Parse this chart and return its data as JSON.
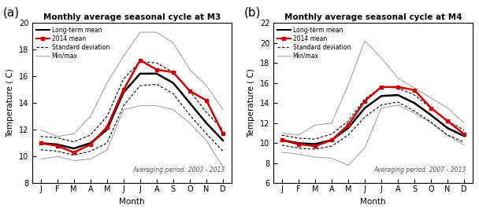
{
  "months": [
    "J",
    "F",
    "M",
    "A",
    "M",
    "J",
    "J",
    "A",
    "S",
    "O",
    "N",
    "D"
  ],
  "m3": {
    "title": "Monthly average seasonal cycle at M3",
    "ylabel": "Temperature ( C)",
    "xlabel": "Month",
    "ylim": [
      8,
      20
    ],
    "yticks": [
      8,
      10,
      12,
      14,
      16,
      18,
      20
    ],
    "averaging_text": "Averaging period: 2003 - 2013",
    "long_term_mean": [
      11.0,
      10.9,
      10.6,
      11.0,
      12.0,
      14.8,
      16.2,
      16.2,
      15.5,
      14.0,
      12.5,
      11.2
    ],
    "mean_2014": [
      11.0,
      10.8,
      10.3,
      10.9,
      12.2,
      15.0,
      17.2,
      16.5,
      16.3,
      14.9,
      14.2,
      11.7
    ],
    "std_upper": [
      11.5,
      11.4,
      11.1,
      11.6,
      13.0,
      15.8,
      17.1,
      17.0,
      16.3,
      14.9,
      13.3,
      12.0
    ],
    "std_lower": [
      10.5,
      10.4,
      10.1,
      10.4,
      11.0,
      13.8,
      15.3,
      15.4,
      14.7,
      13.1,
      11.7,
      10.4
    ],
    "max_line": [
      12.0,
      11.5,
      11.7,
      13.0,
      15.5,
      17.5,
      19.3,
      19.3,
      18.5,
      16.5,
      15.3,
      13.5
    ],
    "min_line": [
      9.8,
      10.0,
      9.7,
      9.8,
      10.5,
      13.5,
      13.8,
      13.8,
      13.5,
      12.5,
      11.2,
      9.2
    ]
  },
  "m4": {
    "title": "Monthly average seasonal cycle at M4",
    "ylabel": "Temperature ( C)",
    "xlabel": "Month",
    "ylim": [
      6,
      22
    ],
    "yticks": [
      6,
      8,
      10,
      12,
      14,
      16,
      18,
      20,
      22
    ],
    "averaging_text": "Averaging period: 2007 - 2013",
    "long_term_mean": [
      10.3,
      10.0,
      9.9,
      10.3,
      11.5,
      13.5,
      14.7,
      14.8,
      14.0,
      12.8,
      11.5,
      10.7
    ],
    "mean_2014": [
      10.3,
      9.9,
      9.7,
      10.3,
      11.8,
      14.2,
      15.6,
      15.6,
      15.3,
      13.5,
      12.2,
      10.9
    ],
    "std_upper": [
      10.8,
      10.5,
      10.4,
      10.9,
      12.2,
      14.4,
      15.6,
      15.5,
      14.8,
      13.5,
      12.2,
      11.3
    ],
    "std_lower": [
      9.8,
      9.5,
      9.4,
      9.7,
      10.8,
      12.6,
      13.8,
      14.1,
      13.2,
      12.1,
      10.8,
      10.1
    ],
    "max_line": [
      11.0,
      10.8,
      11.8,
      12.0,
      15.8,
      20.2,
      18.5,
      16.5,
      15.5,
      14.5,
      13.5,
      12.0
    ],
    "min_line": [
      9.1,
      8.9,
      8.6,
      8.5,
      7.8,
      9.5,
      13.5,
      13.8,
      13.0,
      12.0,
      10.8,
      9.8
    ]
  },
  "colors": {
    "long_term_mean": "#000000",
    "mean_2014": "#cc0000",
    "std": "#000000",
    "minmax": "#999999",
    "background": "#ffffff"
  },
  "panel_labels": [
    "(a)",
    "(b)"
  ],
  "panel_keys": [
    "m3",
    "m4"
  ]
}
